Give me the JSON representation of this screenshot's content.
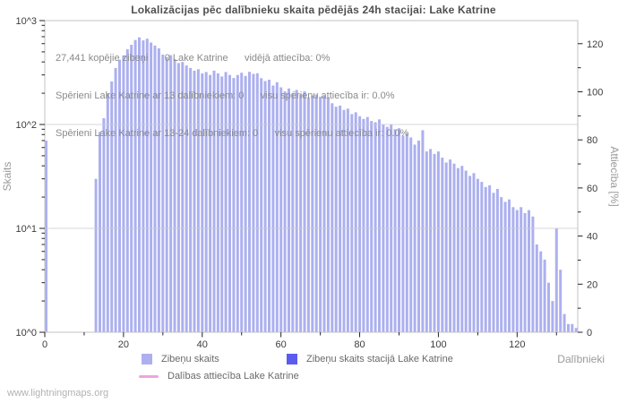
{
  "title": "Lokalizācijas pēc dalībnieku skaita pēdējās 24h stacijai: Lake Katrine",
  "annotations": [
    "27,441 kopējie zibeņi      0 Lake Katrine      vidējā attiecība: 0%",
    "Spērieni Lake Katrine ar 13 dalībniekiem: 0      visu spērienu attiecība ir: 0.0%",
    "Spērieni Lake Katrine ar 13-24 dalībniekiem: 0      visu spērienu attiecība ir: 0.0%"
  ],
  "watermark": "www.lightningmaps.org",
  "colors": {
    "bars": "#acb0ef",
    "station_bars": "#5b5bef",
    "ratio_line": "#f0a3e0",
    "grid": "#c9cad4",
    "border": "#c3c3c3",
    "tick_text": "#3c3c3c"
  },
  "chart_data": {
    "type": "bar",
    "title": "Lokalizācijas pēc dalībnieku skaita pēdējās 24h stacijai: Lake Katrine",
    "x_axis": {
      "title": "Dalībnieki",
      "min": 0,
      "max": 135.4,
      "major_step": 20,
      "minor_step": 10,
      "tick_labels": [
        "0",
        "20",
        "40",
        "60",
        "80",
        "100",
        "120"
      ]
    },
    "y_left": {
      "title": "Skaits",
      "scale": "log",
      "min": 1,
      "max": 1000,
      "tick_labels": [
        "10^0",
        "10^1",
        "10^2",
        "10^3"
      ],
      "grid": true
    },
    "y_right": {
      "title": "Attiecība [%]",
      "scale": "linear",
      "min": 0,
      "max": 129.6,
      "major_step": 20,
      "minor_step": 10,
      "tick_labels": [
        "0",
        "20",
        "40",
        "60",
        "80",
        "100",
        "120"
      ]
    },
    "series": [
      {
        "name": "Zibeņu skaits",
        "type": "bar",
        "color": "#acb0ef",
        "points": [
          [
            0,
            70
          ],
          [
            13,
            30
          ],
          [
            14,
            85
          ],
          [
            15,
            115
          ],
          [
            16,
            200
          ],
          [
            17,
            260
          ],
          [
            18,
            350
          ],
          [
            19,
            420
          ],
          [
            20,
            460
          ],
          [
            21,
            530
          ],
          [
            22,
            585
          ],
          [
            23,
            650
          ],
          [
            24,
            690
          ],
          [
            25,
            645
          ],
          [
            26,
            670
          ],
          [
            27,
            615
          ],
          [
            28,
            575
          ],
          [
            29,
            540
          ],
          [
            30,
            470
          ],
          [
            31,
            445
          ],
          [
            32,
            465
          ],
          [
            33,
            425
          ],
          [
            34,
            390
          ],
          [
            35,
            400
          ],
          [
            36,
            370
          ],
          [
            37,
            350
          ],
          [
            38,
            330
          ],
          [
            39,
            340
          ],
          [
            40,
            310
          ],
          [
            41,
            320
          ],
          [
            42,
            300
          ],
          [
            43,
            330
          ],
          [
            44,
            310
          ],
          [
            45,
            290
          ],
          [
            46,
            320
          ],
          [
            47,
            300
          ],
          [
            48,
            280
          ],
          [
            49,
            300
          ],
          [
            50,
            315
          ],
          [
            51,
            293
          ],
          [
            52,
            321
          ],
          [
            53,
            307
          ],
          [
            54,
            311
          ],
          [
            55,
            279
          ],
          [
            56,
            262
          ],
          [
            57,
            270
          ],
          [
            58,
            237
          ],
          [
            59,
            255
          ],
          [
            60,
            228
          ],
          [
            61,
            208
          ],
          [
            62,
            222
          ],
          [
            63,
            200
          ],
          [
            64,
            215
          ],
          [
            65,
            195
          ],
          [
            66,
            208
          ],
          [
            67,
            182
          ],
          [
            68,
            190
          ],
          [
            69,
            194
          ],
          [
            70,
            185
          ],
          [
            71,
            190
          ],
          [
            72,
            182
          ],
          [
            73,
            160
          ],
          [
            74,
            148
          ],
          [
            75,
            152
          ],
          [
            76,
            138
          ],
          [
            77,
            142
          ],
          [
            78,
            126
          ],
          [
            79,
            131
          ],
          [
            80,
            120
          ],
          [
            81,
            113
          ],
          [
            82,
            118
          ],
          [
            83,
            108
          ],
          [
            84,
            105
          ],
          [
            85,
            112
          ],
          [
            86,
            100
          ],
          [
            87,
            95
          ],
          [
            88,
            100
          ],
          [
            89,
            90
          ],
          [
            90,
            92
          ],
          [
            91,
            78
          ],
          [
            92,
            82
          ],
          [
            93,
            75
          ],
          [
            94,
            64
          ],
          [
            95,
            70
          ],
          [
            96,
            88
          ],
          [
            97,
            55
          ],
          [
            98,
            58
          ],
          [
            99,
            52
          ],
          [
            100,
            55
          ],
          [
            101,
            48
          ],
          [
            102,
            43
          ],
          [
            103,
            46
          ],
          [
            104,
            42
          ],
          [
            105,
            38
          ],
          [
            106,
            40
          ],
          [
            107,
            36
          ],
          [
            108,
            32
          ],
          [
            109,
            34
          ],
          [
            110,
            30
          ],
          [
            111,
            28
          ],
          [
            112,
            25
          ],
          [
            113,
            26
          ],
          [
            114,
            22
          ],
          [
            115,
            24
          ],
          [
            116,
            20
          ],
          [
            117,
            18
          ],
          [
            118,
            19
          ],
          [
            119,
            16
          ],
          [
            120,
            15
          ],
          [
            121,
            16
          ],
          [
            122,
            14
          ],
          [
            123,
            15
          ],
          [
            124,
            13
          ],
          [
            125,
            7
          ],
          [
            126,
            6
          ],
          [
            127,
            5
          ],
          [
            128,
            3
          ],
          [
            129,
            2
          ],
          [
            130,
            10
          ],
          [
            131,
            4
          ],
          [
            132,
            1.5
          ],
          [
            133,
            1.2
          ],
          [
            134,
            1.2
          ],
          [
            135,
            1.1
          ]
        ]
      },
      {
        "name": "Zibeņu skaits stacijā Lake Katrine",
        "type": "bar",
        "color": "#5b5bef",
        "points": []
      },
      {
        "name": "Dalības attiecība Lake Katrine",
        "type": "line",
        "color": "#f0a3e0",
        "points": []
      }
    ]
  }
}
